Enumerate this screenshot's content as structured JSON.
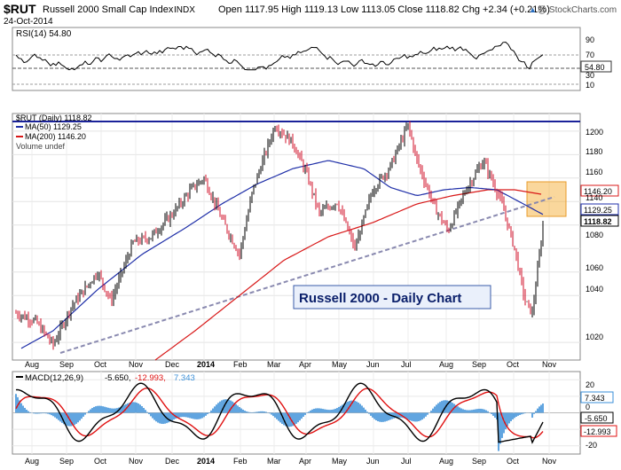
{
  "header": {
    "symbol": "$RUT",
    "name": "Russell 2000 Small Cap Index",
    "exchange": "INDX",
    "date": "24-Oct-2014",
    "ohlc": "Open 1117.95  High 1119.13  Low 1113.05  Close 1118.82  Chg +2.34 (+0.21%)",
    "watermark": "@ StockCharts.com",
    "arrow_glyph": "▲"
  },
  "rsi_panel": {
    "legend": "RSI(14) 54.80",
    "last_tag": "54.80",
    "levels": [
      "90",
      "70",
      "50",
      "30",
      "10"
    ]
  },
  "price_panel": {
    "legend_main": "$RUT (Daily) 1118.82",
    "legend_ma50": "MA(50) 1129.25",
    "legend_ma200": "MA(200) 1146.20",
    "legend_volume": "Volume undef",
    "annotation": "Russell 2000 - Daily Chart",
    "tags": {
      "ma200": "1146.20",
      "ma50": "1129.25",
      "close": "1118.82"
    },
    "y_ticks": [
      "1200",
      "1180",
      "1160",
      "1140",
      "1120",
      "1100",
      "1080",
      "1060",
      "1040",
      "1020"
    ]
  },
  "macd_panel": {
    "legend_name": "MACD(12,26,9)",
    "legend_macd": "-5.650,",
    "legend_signal": "-12.993,",
    "legend_hist": "7.343",
    "tags": {
      "hist": "7.343",
      "macd": "-5.650",
      "signal": "-12.993"
    },
    "y_ticks": [
      "20",
      "10",
      "0",
      "-10",
      "-20"
    ]
  },
  "x_axis": {
    "months": [
      "Aug",
      "Sep",
      "Oct",
      "Nov",
      "Dec",
      "2014",
      "Feb",
      "Mar",
      "Apr",
      "May",
      "Jun",
      "Jul",
      "Aug",
      "Sep",
      "Oct",
      "Nov"
    ]
  },
  "colors": {
    "price_up": "#000000",
    "price_down": "#d0102a",
    "ma50": "#1f2fa8",
    "ma200": "#d81818",
    "resistance": "#1a2299",
    "trendline": "#8a8ab0",
    "zone": "#f5a623",
    "macd_line": "#000000",
    "signal_line": "#e01010",
    "histogram": "#3a8fd8",
    "label_fill": "#eaf0fb"
  },
  "chart_data": [
    {
      "type": "line",
      "title": "RSI(14)",
      "ylim": [
        0,
        100
      ],
      "reference_levels": [
        70,
        50,
        30
      ],
      "last": 54.8
    },
    {
      "type": "candlestick",
      "title": "$RUT (Daily)",
      "ylim": [
        1005,
        1215
      ],
      "months": [
        "Aug",
        "Sep",
        "Oct",
        "Nov",
        "Dec",
        "2014",
        "Feb",
        "Mar",
        "Apr",
        "May",
        "Jun",
        "Jul",
        "Aug",
        "Sep",
        "Oct",
        "Nov"
      ],
      "close_path": [
        [
          "Aug",
          1045
        ],
        [
          "Sep",
          1018
        ],
        [
          "Oct",
          1080
        ],
        [
          "Nov",
          1105
        ],
        [
          "Dec",
          1125
        ],
        [
          "2014",
          1160
        ],
        [
          "Feb",
          1100
        ],
        [
          "Mar",
          1205
        ],
        [
          "Apr",
          1160
        ],
        [
          "May",
          1100
        ],
        [
          "Jun",
          1160
        ],
        [
          "Jul",
          1202
        ],
        [
          "Aug",
          1120
        ],
        [
          "Sep",
          1175
        ],
        [
          "Oct",
          1090
        ],
        [
          "Oct",
          1045
        ],
        [
          "Nov",
          1118.82
        ]
      ],
      "ma50": [
        [
          "Aug",
          1015
        ],
        [
          "Oct",
          1070
        ],
        [
          "Dec",
          1110
        ],
        [
          "Feb",
          1150
        ],
        [
          "Apr",
          1175
        ],
        [
          "Jun",
          1155
        ],
        [
          "Aug",
          1150
        ],
        [
          "Sep",
          1152
        ],
        [
          "Oct",
          1135
        ],
        [
          "Nov",
          1129.25
        ]
      ],
      "ma200": [
        [
          "Dec",
          1000
        ],
        [
          "Feb",
          1045
        ],
        [
          "Apr",
          1105
        ],
        [
          "Jun",
          1130
        ],
        [
          "Aug",
          1148
        ],
        [
          "Oct",
          1150
        ],
        [
          "Nov",
          1146.2
        ]
      ],
      "resistance": 1210,
      "support_trendline": [
        [
          "Sep",
          1010
        ],
        [
          "Nov",
          1140
        ]
      ],
      "zone": {
        "from": "Oct",
        "to": "Nov",
        "low": 1130,
        "high": 1152
      },
      "close": 1118.82
    },
    {
      "type": "line",
      "title": "MACD(12,26,9)",
      "ylim": [
        -25,
        25
      ],
      "macd": -5.65,
      "signal": -12.993,
      "histogram": 7.343
    }
  ]
}
